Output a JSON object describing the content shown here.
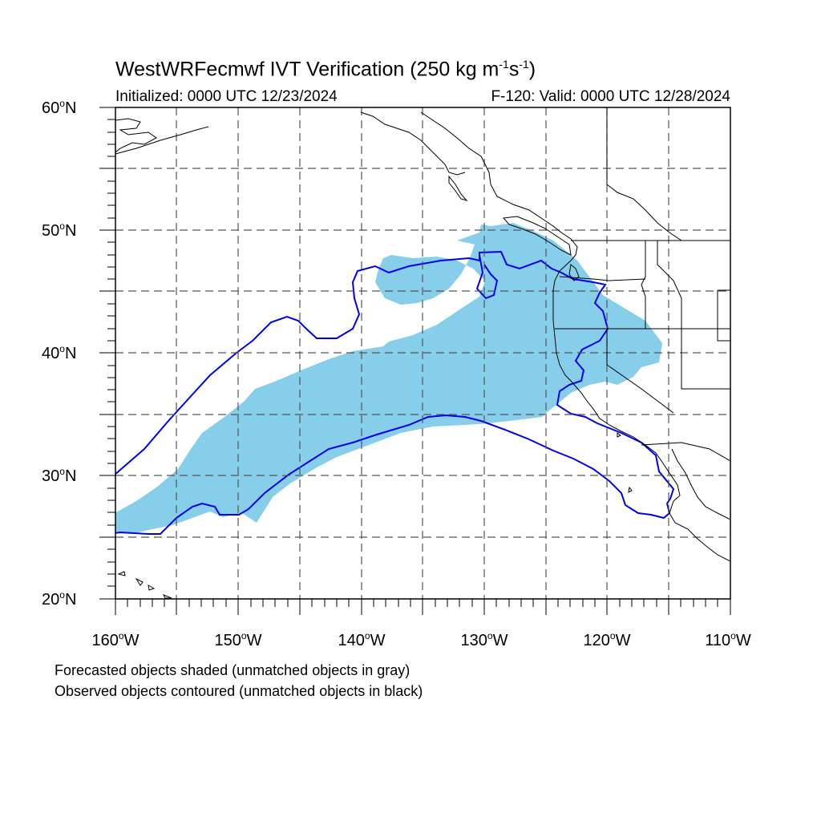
{
  "header": {
    "title_main": "WestWRFecmwf IVT Verification (250 kg m",
    "title_exp1": "-1",
    "title_mid": "s",
    "title_exp2": "-1",
    "title_end": ")",
    "initialized": "Initialized: 0000 UTC 12/23/2024",
    "valid": "F-120: Valid: 0000 UTC 12/28/2024"
  },
  "axes": {
    "lat_labels": [
      {
        "num": "60",
        "deg": "o",
        "dir": "N",
        "value": 60
      },
      {
        "num": "50",
        "deg": "o",
        "dir": "N",
        "value": 50
      },
      {
        "num": "40",
        "deg": "o",
        "dir": "N",
        "value": 40
      },
      {
        "num": "30",
        "deg": "o",
        "dir": "N",
        "value": 30
      },
      {
        "num": "20",
        "deg": "o",
        "dir": "N",
        "value": 20
      }
    ],
    "lon_labels": [
      {
        "num": "160",
        "deg": "o",
        "dir": "W",
        "value": -160
      },
      {
        "num": "150",
        "deg": "o",
        "dir": "W",
        "value": -150
      },
      {
        "num": "140",
        "deg": "o",
        "dir": "W",
        "value": -140
      },
      {
        "num": "130",
        "deg": "o",
        "dir": "W",
        "value": -130
      },
      {
        "num": "120",
        "deg": "o",
        "dir": "W",
        "value": -120
      },
      {
        "num": "110",
        "deg": "o",
        "dir": "W",
        "value": -110
      }
    ],
    "lat_range": [
      20,
      60
    ],
    "lon_range": [
      -160,
      -110
    ],
    "grid_spacing_deg": 5,
    "grid_style": "dashed"
  },
  "legend": {
    "line1": "Forecasted objects shaded (unmatched objects in gray)",
    "line2": "Observed objects contoured (unmatched objects in black)"
  },
  "colors": {
    "forecast_fill": "#87ceeb",
    "observed_contour": "#0000ee",
    "coastline": "#000000",
    "grid": "#555555"
  }
}
